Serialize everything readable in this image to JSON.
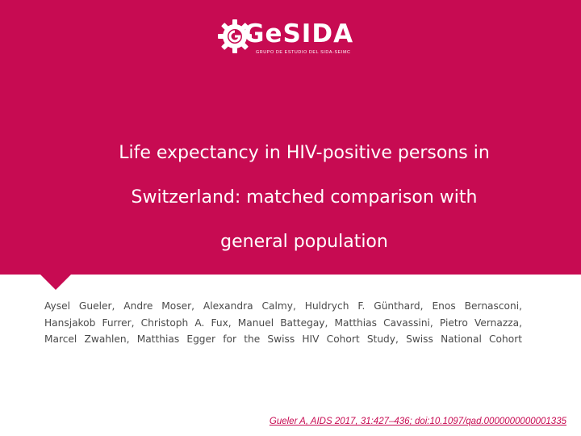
{
  "logo": {
    "wordmark": "GeSIDA",
    "subtitle": "GRUPO DE ESTUDIO DEL SIDA-SEIMC"
  },
  "title": {
    "lines": [
      "Life expectancy in HIV-positive persons in",
      "Switzerland: matched comparison with",
      "general population"
    ]
  },
  "authors": {
    "lines": [
      "Aysel Gueler, Andre Moser, Alexandra Calmy, Huldrych F. Günthard, Enos Bernasconi,",
      "Hansjakob Furrer, Christoph A. Fux, Manuel Battegay, Matthias Cavassini, Pietro Vernazza,",
      "Marcel Zwahlen, Matthias Egger for the Swiss HIV Cohort Study, Swiss National Cohort"
    ]
  },
  "citation": "Gueler A, AIDS 2017, 31:427–436; doi:10.1097/qad.0000000000001335",
  "colors": {
    "brand": "#c70b52",
    "text": "#4a4a4a",
    "background": "#ffffff"
  }
}
